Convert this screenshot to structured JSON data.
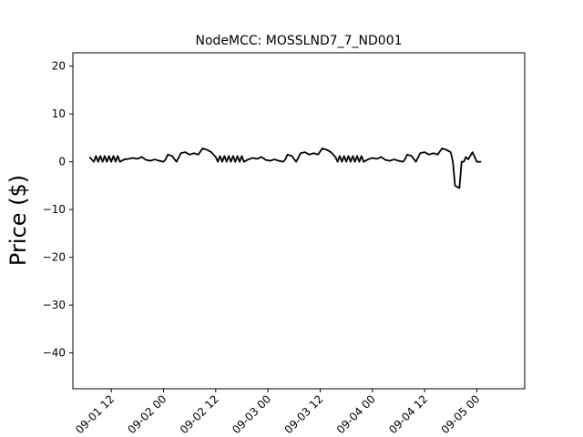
{
  "chart_data": {
    "type": "line",
    "title": "NodeMCC: MOSSLND7_7_ND001",
    "xlabel": "",
    "ylabel": "Price ($)",
    "grid": false,
    "legend": "none",
    "ylim": [
      -47.5,
      22.8
    ],
    "xlim": [
      "2020-09-01 03:11",
      "2020-09-05 11:00"
    ],
    "yticks": [
      20,
      10,
      0,
      -10,
      -20,
      -30,
      -40
    ],
    "ytick_labels": [
      "20",
      "10",
      "0",
      "−10",
      "−20",
      "−30",
      "−40"
    ],
    "xticks": [
      "2020-09-01 12:00",
      "2020-09-02 00:00",
      "2020-09-02 12:00",
      "2020-09-03 00:00",
      "2020-09-03 12:00",
      "2020-09-04 00:00",
      "2020-09-04 12:00",
      "2020-09-05 00:00"
    ],
    "xtick_labels": [
      "09-01 12",
      "09-02 00",
      "09-02 12",
      "09-03 00",
      "09-03 12",
      "09-04 00",
      "09-04 12",
      "09-05 00"
    ],
    "line_color": "#000000",
    "series": [
      {
        "name": "",
        "points": [
          [
            "2020-09-01 07:00",
            1.0
          ],
          [
            "2020-09-01 08:00",
            0.0
          ],
          [
            "2020-09-01 08:30",
            1.2
          ],
          [
            "2020-09-01 09:00",
            0.0
          ],
          [
            "2020-09-01 09:30",
            1.2
          ],
          [
            "2020-09-01 10:00",
            0.0
          ],
          [
            "2020-09-01 10:30",
            1.2
          ],
          [
            "2020-09-01 11:00",
            0.0
          ],
          [
            "2020-09-01 11:30",
            1.2
          ],
          [
            "2020-09-01 12:00",
            0.0
          ],
          [
            "2020-09-01 12:30",
            1.2
          ],
          [
            "2020-09-01 13:00",
            0.0
          ],
          [
            "2020-09-01 13:30",
            1.2
          ],
          [
            "2020-09-01 14:00",
            0.0
          ],
          [
            "2020-09-01 15:00",
            0.5
          ],
          [
            "2020-09-01 16:00",
            0.6
          ],
          [
            "2020-09-01 17:00",
            0.8
          ],
          [
            "2020-09-01 18:00",
            0.6
          ],
          [
            "2020-09-01 19:00",
            1.0
          ],
          [
            "2020-09-01 20:00",
            0.4
          ],
          [
            "2020-09-01 21:00",
            0.2
          ],
          [
            "2020-09-01 22:00",
            0.5
          ],
          [
            "2020-09-01 23:00",
            0.2
          ],
          [
            "2020-09-02 00:00",
            0.0
          ],
          [
            "2020-09-02 00:30",
            0.5
          ],
          [
            "2020-09-02 01:00",
            1.5
          ],
          [
            "2020-09-02 02:00",
            1.2
          ],
          [
            "2020-09-02 03:00",
            0.0
          ],
          [
            "2020-09-02 04:00",
            1.8
          ],
          [
            "2020-09-02 05:00",
            2.0
          ],
          [
            "2020-09-02 06:00",
            1.5
          ],
          [
            "2020-09-02 07:00",
            1.8
          ],
          [
            "2020-09-02 08:00",
            1.5
          ],
          [
            "2020-09-02 09:00",
            2.8
          ],
          [
            "2020-09-02 10:00",
            2.5
          ],
          [
            "2020-09-02 11:00",
            2.0
          ],
          [
            "2020-09-02 12:00",
            1.0
          ],
          [
            "2020-09-02 12:30",
            0.0
          ],
          [
            "2020-09-02 13:00",
            1.2
          ],
          [
            "2020-09-02 13:30",
            0.0
          ],
          [
            "2020-09-02 14:00",
            1.2
          ],
          [
            "2020-09-02 14:30",
            0.0
          ],
          [
            "2020-09-02 15:00",
            1.2
          ],
          [
            "2020-09-02 15:30",
            0.0
          ],
          [
            "2020-09-02 16:00",
            1.2
          ],
          [
            "2020-09-02 16:30",
            0.0
          ],
          [
            "2020-09-02 17:00",
            1.2
          ],
          [
            "2020-09-02 17:30",
            0.0
          ],
          [
            "2020-09-02 18:00",
            1.2
          ],
          [
            "2020-09-02 18:30",
            0.0
          ],
          [
            "2020-09-02 19:30",
            0.5
          ],
          [
            "2020-09-02 20:30",
            0.8
          ],
          [
            "2020-09-02 21:30",
            0.6
          ],
          [
            "2020-09-02 22:30",
            1.0
          ],
          [
            "2020-09-02 23:30",
            0.4
          ],
          [
            "2020-09-03 00:30",
            0.2
          ],
          [
            "2020-09-03 01:30",
            0.5
          ],
          [
            "2020-09-03 02:30",
            0.2
          ],
          [
            "2020-09-03 03:30",
            0.0
          ],
          [
            "2020-09-03 04:00",
            0.5
          ],
          [
            "2020-09-03 04:30",
            1.5
          ],
          [
            "2020-09-03 05:30",
            1.2
          ],
          [
            "2020-09-03 06:30",
            0.0
          ],
          [
            "2020-09-03 07:30",
            1.8
          ],
          [
            "2020-09-03 08:30",
            2.0
          ],
          [
            "2020-09-03 09:30",
            1.5
          ],
          [
            "2020-09-03 10:30",
            1.8
          ],
          [
            "2020-09-03 11:30",
            1.5
          ],
          [
            "2020-09-03 12:30",
            2.8
          ],
          [
            "2020-09-03 13:30",
            2.5
          ],
          [
            "2020-09-03 14:30",
            2.0
          ],
          [
            "2020-09-03 15:30",
            1.0
          ],
          [
            "2020-09-03 16:00",
            0.0
          ],
          [
            "2020-09-03 16:30",
            1.2
          ],
          [
            "2020-09-03 17:00",
            0.0
          ],
          [
            "2020-09-03 17:30",
            1.2
          ],
          [
            "2020-09-03 18:00",
            0.0
          ],
          [
            "2020-09-03 18:30",
            1.2
          ],
          [
            "2020-09-03 19:00",
            0.0
          ],
          [
            "2020-09-03 19:30",
            1.2
          ],
          [
            "2020-09-03 20:00",
            0.0
          ],
          [
            "2020-09-03 20:30",
            1.2
          ],
          [
            "2020-09-03 21:00",
            0.0
          ],
          [
            "2020-09-03 21:30",
            1.2
          ],
          [
            "2020-09-03 22:00",
            0.0
          ],
          [
            "2020-09-03 23:00",
            0.5
          ],
          [
            "2020-09-04 00:00",
            0.8
          ],
          [
            "2020-09-04 01:00",
            0.6
          ],
          [
            "2020-09-04 02:00",
            1.0
          ],
          [
            "2020-09-04 03:00",
            0.4
          ],
          [
            "2020-09-04 04:00",
            0.2
          ],
          [
            "2020-09-04 05:00",
            0.5
          ],
          [
            "2020-09-04 06:00",
            0.2
          ],
          [
            "2020-09-04 07:00",
            0.0
          ],
          [
            "2020-09-04 07:30",
            0.5
          ],
          [
            "2020-09-04 08:00",
            1.5
          ],
          [
            "2020-09-04 09:00",
            1.2
          ],
          [
            "2020-09-04 10:00",
            0.0
          ],
          [
            "2020-09-04 11:00",
            1.8
          ],
          [
            "2020-09-04 12:00",
            2.0
          ],
          [
            "2020-09-04 13:00",
            1.5
          ],
          [
            "2020-09-04 14:00",
            1.8
          ],
          [
            "2020-09-04 15:00",
            1.5
          ],
          [
            "2020-09-04 16:00",
            2.8
          ],
          [
            "2020-09-04 17:00",
            2.5
          ],
          [
            "2020-09-04 18:00",
            2.0
          ],
          [
            "2020-09-04 18:30",
            0.0
          ],
          [
            "2020-09-04 19:00",
            -5.0
          ],
          [
            "2020-09-04 20:00",
            -5.5
          ],
          [
            "2020-09-04 20:30",
            0.0
          ],
          [
            "2020-09-04 21:00",
            0.0
          ],
          [
            "2020-09-04 21:30",
            1.0
          ],
          [
            "2020-09-04 22:00",
            0.5
          ],
          [
            "2020-09-04 23:00",
            2.0
          ],
          [
            "2020-09-05 00:00",
            0.0
          ],
          [
            "2020-09-05 00:30",
            0.0
          ],
          [
            "2020-09-05 01:00",
            0.0
          ]
        ]
      }
    ]
  }
}
